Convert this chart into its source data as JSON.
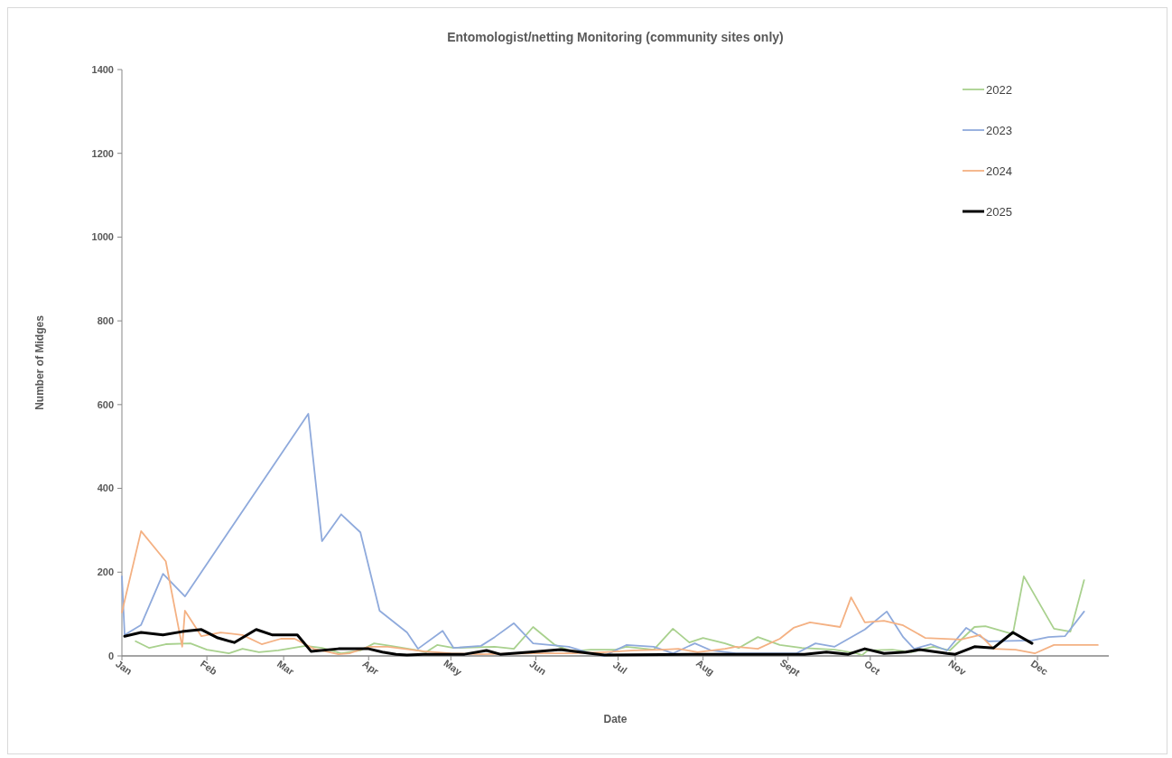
{
  "chart_data": {
    "type": "line",
    "title": "Entomologist/netting Monitoring (community sites only)",
    "xlabel": "Date",
    "ylabel": "Number of Midges",
    "xlim": [
      "--01-01",
      "--12-27"
    ],
    "xticks": [
      {
        "value": "--01-01",
        "label": "Jan"
      },
      {
        "value": "--02-01",
        "label": "Feb"
      },
      {
        "value": "--03-01",
        "label": "Mar"
      },
      {
        "value": "--04-01",
        "label": "Apr"
      },
      {
        "value": "--05-01",
        "label": "May"
      },
      {
        "value": "--06-01",
        "label": "Jun"
      },
      {
        "value": "--07-01",
        "label": "Jul"
      },
      {
        "value": "--08-01",
        "label": "Aug"
      },
      {
        "value": "--09-01",
        "label": "Sept"
      },
      {
        "value": "--10-01",
        "label": "Oct"
      },
      {
        "value": "--11-01",
        "label": "Nov"
      },
      {
        "value": "--12-01",
        "label": "Dec"
      }
    ],
    "ylim": [
      0,
      1400
    ],
    "yticks": [
      0,
      200,
      400,
      600,
      800,
      1000,
      1200,
      1400
    ],
    "grid": false,
    "legend": "top right",
    "marker": "none",
    "line_style": "solid",
    "series": [
      {
        "name": "2022",
        "color": "#a9d18e",
        "x": [
          "--01-06",
          "--01-11",
          "--01-17",
          "--01-26",
          "--02-01",
          "--02-09",
          "--02-14",
          "--02-20",
          "--02-27",
          "--03-09",
          "--03-15",
          "--03-22",
          "--03-29",
          "--04-03",
          "--04-09",
          "--04-19",
          "--04-22",
          "--04-26",
          "--05-02",
          "--05-17",
          "--05-24",
          "--05-31",
          "--06-08",
          "--06-14",
          "--06-21",
          "--06-30",
          "--07-04",
          "--07-14",
          "--07-21",
          "--07-27",
          "--08-01",
          "--08-09",
          "--08-14",
          "--08-21",
          "--08-29",
          "--09-06",
          "--09-18",
          "--09-26",
          "--09-28",
          "--09-30",
          "--10-09",
          "--10-16",
          "--10-24",
          "--10-30",
          "--11-08",
          "--11-12",
          "--11-22",
          "--11-26",
          "--12-07",
          "--12-13",
          "--12-18"
        ],
        "values": [
          35,
          19,
          28,
          30,
          15,
          6,
          17,
          9,
          13,
          24,
          19,
          6,
          13,
          30,
          24,
          13,
          9,
          26,
          19,
          22,
          17,
          69,
          26,
          11,
          15,
          15,
          22,
          15,
          65,
          32,
          43,
          30,
          19,
          45,
          26,
          19,
          15,
          6,
          2,
          13,
          15,
          9,
          22,
          13,
          69,
          71,
          52,
          190,
          65,
          58,
          181
        ]
      },
      {
        "name": "2023",
        "color": "#8faadc",
        "x": [
          "--01-01",
          "--01-02",
          "--01-08",
          "--01-16",
          "--01-24",
          "--03-10",
          "--03-15",
          "--03-22",
          "--03-29",
          "--04-05",
          "--04-15",
          "--04-19",
          "--04-28",
          "--05-02",
          "--05-12",
          "--05-17",
          "--05-24",
          "--05-31",
          "--06-13",
          "--06-21",
          "--06-26",
          "--06-29",
          "--07-04",
          "--07-14",
          "--07-21",
          "--07-29",
          "--08-04",
          "--08-13",
          "--09-04",
          "--09-11",
          "--09-18",
          "--09-29",
          "--10-07",
          "--10-13",
          "--10-17",
          "--10-23",
          "--10-29",
          "--11-05",
          "--11-13",
          "--11-29",
          "--12-05",
          "--12-11",
          "--12-18"
        ],
        "values": [
          190,
          50,
          74,
          196,
          142,
          578,
          274,
          338,
          295,
          108,
          56,
          17,
          60,
          19,
          24,
          45,
          78,
          30,
          22,
          6,
          0,
          10,
          26,
          22,
          6,
          30,
          13,
          6,
          6,
          30,
          22,
          63,
          106,
          45,
          17,
          28,
          13,
          67,
          35,
          37,
          45,
          47,
          106
        ]
      },
      {
        "name": "2024",
        "color": "#f4b183",
        "x": [
          "--01-01",
          "--01-08",
          "--01-17",
          "--01-23",
          "--01-24",
          "--01-30",
          "--02-06",
          "--02-14",
          "--02-21",
          "--02-28",
          "--03-05",
          "--03-12",
          "--03-21",
          "--03-25",
          "--04-01",
          "--04-08",
          "--04-21",
          "--05-01",
          "--05-12",
          "--05-30",
          "--06-14",
          "--06-26",
          "--07-07",
          "--07-17",
          "--07-23",
          "--07-30",
          "--08-09",
          "--08-13",
          "--08-21",
          "--08-29",
          "--09-03",
          "--09-09",
          "--09-20",
          "--09-24",
          "--09-29",
          "--10-06",
          "--10-13",
          "--10-21",
          "--11-03",
          "--11-10",
          "--11-15",
          "--11-23",
          "--11-30",
          "--12-07",
          "--12-23"
        ],
        "values": [
          104,
          298,
          226,
          22,
          108,
          47,
          56,
          50,
          28,
          41,
          41,
          17,
          4,
          6,
          22,
          22,
          11,
          6,
          4,
          6,
          6,
          9,
          13,
          15,
          17,
          9,
          17,
          22,
          17,
          41,
          67,
          80,
          69,
          140,
          80,
          84,
          73,
          43,
          39,
          50,
          17,
          15,
          6,
          26,
          26
        ]
      },
      {
        "name": "2025",
        "color": "#000000",
        "x": [
          "--01-02",
          "--01-08",
          "--01-16",
          "--01-23",
          "--01-30",
          "--02-05",
          "--02-11",
          "--02-19",
          "--02-25",
          "--03-06",
          "--03-11",
          "--03-21",
          "--04-01",
          "--04-06",
          "--04-11",
          "--04-15",
          "--04-21",
          "--05-01",
          "--05-06",
          "--05-14",
          "--05-19",
          "--05-30",
          "--06-10",
          "--06-21",
          "--06-26",
          "--08-02",
          "--09-07",
          "--09-15",
          "--09-23",
          "--09-29",
          "--10-06",
          "--10-14",
          "--10-19",
          "--10-29",
          "--11-01",
          "--11-08",
          "--11-15",
          "--11-22",
          "--11-29"
        ],
        "values": [
          47,
          56,
          50,
          58,
          63,
          43,
          32,
          63,
          50,
          50,
          11,
          17,
          17,
          9,
          4,
          2,
          4,
          4,
          4,
          13,
          4,
          9,
          15,
          6,
          2,
          4,
          4,
          9,
          4,
          17,
          6,
          9,
          15,
          6,
          4,
          22,
          19,
          56,
          30
        ]
      }
    ]
  }
}
